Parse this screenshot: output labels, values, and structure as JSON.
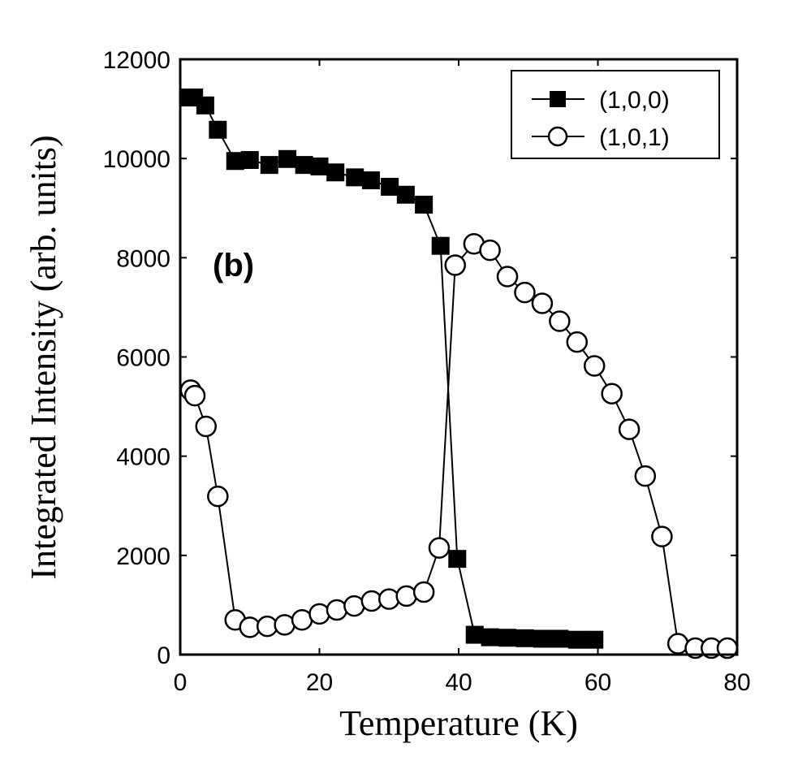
{
  "chart_data": {
    "type": "line",
    "xlabel": "Temperature (K)",
    "ylabel": "Integrated Intensity (arb. units)",
    "xlim": [
      0,
      80
    ],
    "ylim": [
      0,
      12000
    ],
    "xticks": [
      0,
      20,
      40,
      60,
      80
    ],
    "yticks": [
      0,
      2000,
      4000,
      6000,
      8000,
      10000,
      12000
    ],
    "grid": false,
    "legend_position": "top-right",
    "annotation": "(b)",
    "series": [
      {
        "name": "(1,0,0)",
        "marker": "filled-square",
        "x": [
          1.3,
          2.0,
          3.6,
          5.4,
          7.9,
          10.0,
          12.8,
          15.4,
          17.8,
          20.0,
          22.3,
          25.1,
          27.4,
          30.1,
          32.4,
          35.0,
          37.4,
          39.8,
          42.3,
          44.5,
          47.0,
          49.5,
          52.0,
          54.5,
          57.0,
          59.5
        ],
        "y": [
          11230,
          11230,
          11070,
          10580,
          9950,
          9970,
          9870,
          9990,
          9870,
          9840,
          9720,
          9620,
          9560,
          9430,
          9270,
          9070,
          8240,
          1930,
          400,
          350,
          340,
          330,
          320,
          320,
          300,
          300
        ]
      },
      {
        "name": "(1,0,1)",
        "marker": "open-circle",
        "x": [
          1.5,
          2.1,
          3.7,
          5.4,
          7.9,
          10.0,
          12.5,
          15.0,
          17.5,
          20.0,
          22.5,
          25.0,
          27.5,
          30.0,
          32.5,
          35.0,
          37.2,
          39.5,
          42.2,
          44.5,
          47.0,
          49.5,
          52.0,
          54.5,
          57.0,
          59.5,
          62.0,
          64.5,
          66.8,
          69.2,
          71.5,
          74.0,
          76.3,
          78.6
        ],
        "y": [
          5330,
          5220,
          4600,
          3190,
          700,
          550,
          570,
          600,
          700,
          820,
          900,
          980,
          1080,
          1120,
          1180,
          1260,
          2150,
          7850,
          8280,
          8150,
          7620,
          7300,
          7080,
          6720,
          6300,
          5820,
          5260,
          4540,
          3600,
          2380,
          220,
          130,
          130,
          130
        ]
      }
    ]
  }
}
